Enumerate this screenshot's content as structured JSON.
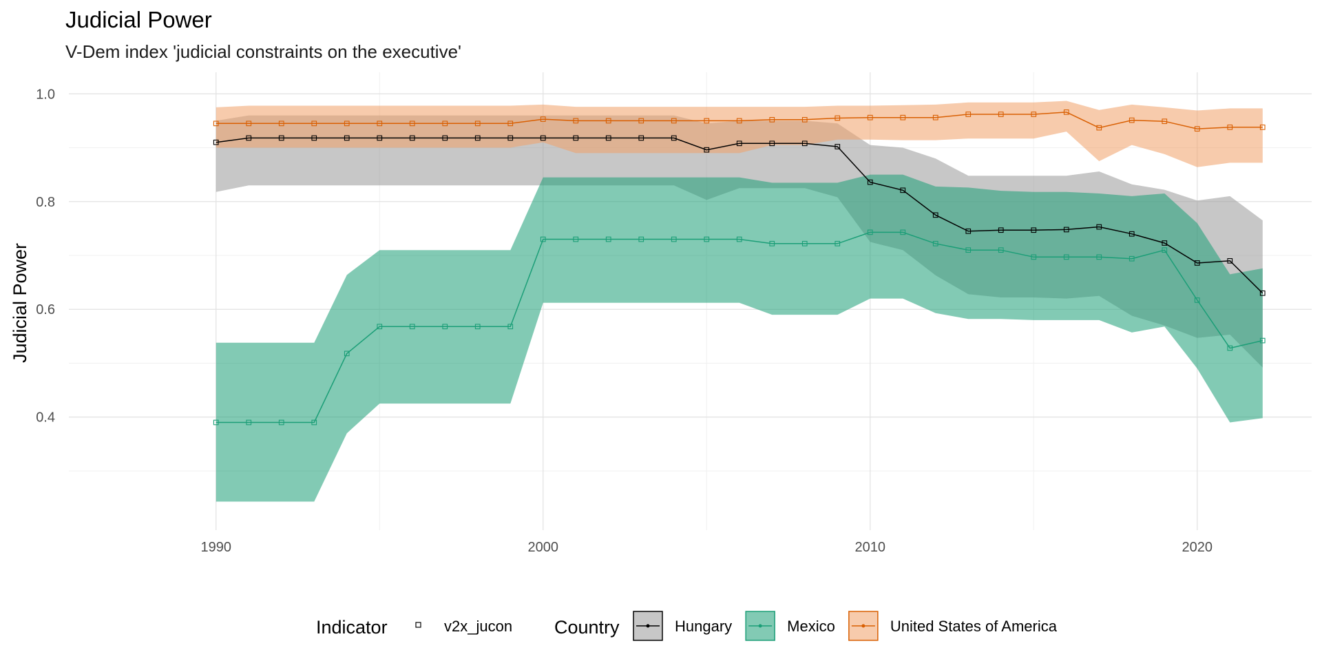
{
  "chart_data": {
    "type": "line",
    "title": "Judicial Power",
    "subtitle": "V-Dem index 'judicial constraints on the executive'",
    "xlabel": "",
    "ylabel": "Judicial Power",
    "xlim": [
      1985.5,
      2023.5
    ],
    "ylim": [
      0.19,
      1.04
    ],
    "x_ticks": [
      1990,
      2000,
      2010,
      2020
    ],
    "y_ticks": [
      0.4,
      0.6,
      0.8,
      1.0
    ],
    "y_tick_labels": [
      "0.4",
      "0.6",
      "0.8",
      "1.0"
    ],
    "grid": true,
    "legend_position": "bottom",
    "legend": {
      "indicator_title": "Indicator",
      "indicator_label": "v2x_jucon",
      "country_title": "Country"
    },
    "x": [
      1990,
      1991,
      1992,
      1993,
      1994,
      1995,
      1996,
      1997,
      1998,
      1999,
      2000,
      2001,
      2002,
      2003,
      2004,
      2005,
      2006,
      2007,
      2008,
      2009,
      2010,
      2011,
      2012,
      2013,
      2014,
      2015,
      2016,
      2017,
      2018,
      2019,
      2020,
      2021,
      2022
    ],
    "series": [
      {
        "name": "Hungary",
        "color": "#000000",
        "ribbon_color": "#999999",
        "values": [
          0.91,
          0.918,
          0.918,
          0.918,
          0.918,
          0.918,
          0.918,
          0.918,
          0.918,
          0.918,
          0.918,
          0.918,
          0.918,
          0.918,
          0.918,
          0.896,
          0.908,
          0.908,
          0.908,
          0.902,
          0.836,
          0.821,
          0.775,
          0.745,
          0.747,
          0.747,
          0.748,
          0.753,
          0.74,
          0.723,
          0.686,
          0.69,
          0.63
        ],
        "upper": [
          0.95,
          0.96,
          0.96,
          0.96,
          0.96,
          0.96,
          0.96,
          0.96,
          0.96,
          0.96,
          0.96,
          0.96,
          0.96,
          0.96,
          0.96,
          0.945,
          0.95,
          0.95,
          0.95,
          0.945,
          0.905,
          0.9,
          0.88,
          0.848,
          0.848,
          0.848,
          0.848,
          0.856,
          0.832,
          0.822,
          0.802,
          0.81,
          0.765
        ],
        "lower": [
          0.818,
          0.83,
          0.83,
          0.83,
          0.83,
          0.83,
          0.83,
          0.83,
          0.83,
          0.83,
          0.83,
          0.83,
          0.83,
          0.83,
          0.83,
          0.803,
          0.825,
          0.825,
          0.825,
          0.808,
          0.725,
          0.71,
          0.663,
          0.628,
          0.622,
          0.622,
          0.62,
          0.625,
          0.588,
          0.57,
          0.547,
          0.553,
          0.492
        ]
      },
      {
        "name": "Mexico",
        "color": "#1b9e77",
        "ribbon_color": "#1b9e77",
        "values": [
          0.39,
          0.39,
          0.39,
          0.39,
          0.518,
          0.568,
          0.568,
          0.568,
          0.568,
          0.568,
          0.73,
          0.73,
          0.73,
          0.73,
          0.73,
          0.73,
          0.73,
          0.722,
          0.722,
          0.722,
          0.743,
          0.743,
          0.722,
          0.71,
          0.71,
          0.697,
          0.697,
          0.697,
          0.694,
          0.71,
          0.617,
          0.528,
          0.542
        ],
        "upper": [
          0.538,
          0.538,
          0.538,
          0.538,
          0.664,
          0.71,
          0.71,
          0.71,
          0.71,
          0.71,
          0.845,
          0.845,
          0.845,
          0.845,
          0.845,
          0.845,
          0.845,
          0.835,
          0.835,
          0.835,
          0.85,
          0.85,
          0.828,
          0.826,
          0.82,
          0.818,
          0.818,
          0.815,
          0.81,
          0.815,
          0.76,
          0.665,
          0.676
        ],
        "lower": [
          0.243,
          0.243,
          0.243,
          0.243,
          0.37,
          0.425,
          0.425,
          0.425,
          0.425,
          0.425,
          0.612,
          0.612,
          0.612,
          0.612,
          0.612,
          0.612,
          0.612,
          0.59,
          0.59,
          0.59,
          0.62,
          0.62,
          0.593,
          0.582,
          0.582,
          0.58,
          0.58,
          0.58,
          0.557,
          0.568,
          0.49,
          0.39,
          0.398
        ]
      },
      {
        "name": "United States of America",
        "color": "#d95f02",
        "ribbon_color": "#f0a068",
        "values": [
          0.945,
          0.945,
          0.945,
          0.945,
          0.945,
          0.945,
          0.945,
          0.945,
          0.945,
          0.945,
          0.953,
          0.95,
          0.95,
          0.95,
          0.95,
          0.95,
          0.95,
          0.952,
          0.952,
          0.955,
          0.956,
          0.956,
          0.956,
          0.962,
          0.962,
          0.962,
          0.966,
          0.937,
          0.951,
          0.949,
          0.935,
          0.938,
          0.938
        ],
        "upper": [
          0.975,
          0.978,
          0.978,
          0.978,
          0.978,
          0.978,
          0.978,
          0.978,
          0.978,
          0.978,
          0.98,
          0.976,
          0.976,
          0.976,
          0.976,
          0.976,
          0.976,
          0.976,
          0.976,
          0.978,
          0.978,
          0.979,
          0.98,
          0.984,
          0.984,
          0.984,
          0.987,
          0.97,
          0.98,
          0.975,
          0.969,
          0.973,
          0.973
        ],
        "lower": [
          0.9,
          0.9,
          0.9,
          0.9,
          0.9,
          0.9,
          0.9,
          0.9,
          0.9,
          0.9,
          0.91,
          0.89,
          0.89,
          0.89,
          0.89,
          0.89,
          0.89,
          0.905,
          0.905,
          0.915,
          0.915,
          0.914,
          0.914,
          0.917,
          0.917,
          0.917,
          0.93,
          0.875,
          0.905,
          0.888,
          0.864,
          0.872,
          0.872
        ]
      }
    ]
  }
}
